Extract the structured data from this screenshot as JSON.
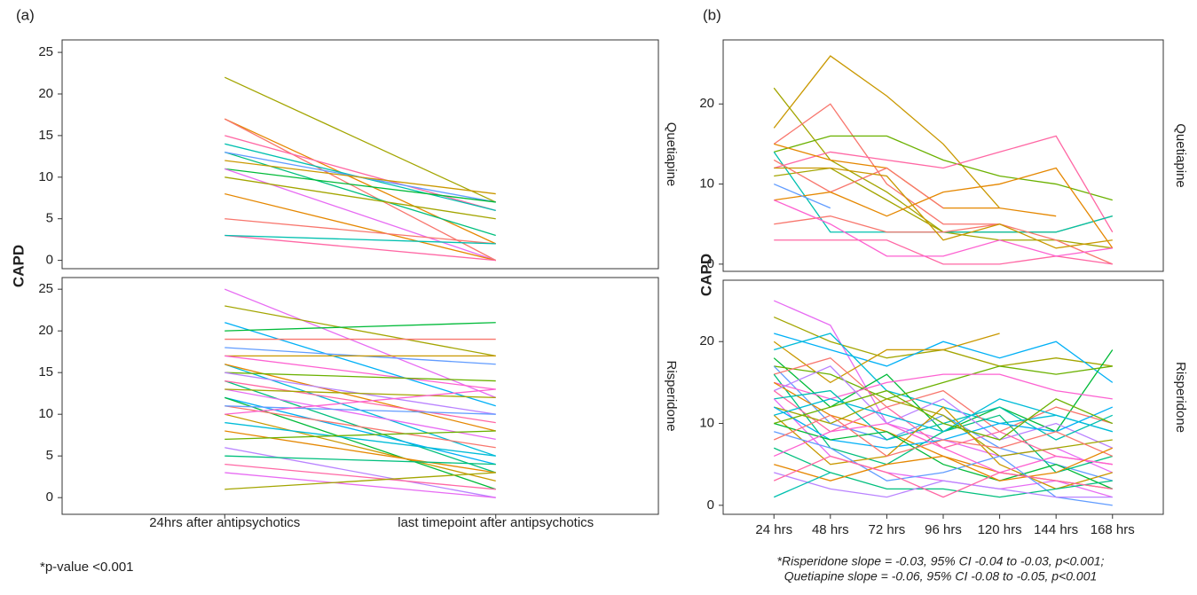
{
  "panels": [
    {
      "label": "(a)",
      "y_label": "CAPD",
      "note": "*p-value <0.001"
    },
    {
      "label": "(b)",
      "y_label": "CAPD",
      "note": [
        "*Risperidone slope = -0.03, 95% CI -0.04 to -0.03, p<0.001;",
        "Quetiapine slope = -0.06, 95% CI -0.08 to -0.05, p<0.001"
      ]
    }
  ],
  "chart_data": [
    {
      "type": "line",
      "facet_label": "Quetiapine",
      "categories": [
        null,
        null
      ],
      "ylim": [
        -1,
        26.5
      ],
      "yticks": [
        0,
        5,
        10,
        15,
        20,
        25
      ],
      "colors": [
        "#a3a500",
        "#e58700",
        "#f8766d",
        "#ff67a4",
        "#00c0af",
        "#00bf7d",
        "#619cff",
        "#c99800",
        "#00ba38",
        "#e76bf3"
      ],
      "series": [
        {
          "values": [
            22,
            7
          ]
        },
        {
          "values": [
            17,
            2
          ]
        },
        {
          "values": [
            17,
            0
          ]
        },
        {
          "values": [
            15,
            6
          ]
        },
        {
          "values": [
            14,
            6
          ]
        },
        {
          "values": [
            13,
            3
          ]
        },
        {
          "values": [
            13,
            7
          ]
        },
        {
          "values": [
            12,
            8
          ]
        },
        {
          "values": [
            11,
            7
          ]
        },
        {
          "values": [
            11,
            0
          ]
        },
        {
          "values": [
            10,
            5
          ]
        },
        {
          "values": [
            8,
            0
          ]
        },
        {
          "values": [
            5,
            2
          ]
        },
        {
          "values": [
            3,
            0
          ]
        },
        {
          "values": [
            3,
            2
          ]
        }
      ]
    },
    {
      "type": "line",
      "facet_label": "Risperidone",
      "categories": [
        "24hrs after antipsychotics",
        "last timepoint after antipsychotics"
      ],
      "ylim": [
        -2,
        26.4
      ],
      "yticks": [
        0,
        5,
        10,
        15,
        20,
        25
      ],
      "colors": [
        "#e76bf3",
        "#a3a500",
        "#00b0f6",
        "#00ba38",
        "#f8766d",
        "#619cff",
        "#c99800",
        "#fd61d1",
        "#00bcd8",
        "#e58700",
        "#6bb100",
        "#b983ff",
        "#00bf7d",
        "#ff67a4"
      ],
      "series": [
        {
          "values": [
            25,
            12
          ]
        },
        {
          "values": [
            23,
            17
          ]
        },
        {
          "values": [
            21,
            11
          ]
        },
        {
          "values": [
            20,
            21
          ]
        },
        {
          "values": [
            19,
            19
          ]
        },
        {
          "values": [
            18,
            16
          ]
        },
        {
          "values": [
            17,
            17
          ]
        },
        {
          "values": [
            17,
            13
          ]
        },
        {
          "values": [
            16,
            5
          ]
        },
        {
          "values": [
            16,
            8
          ]
        },
        {
          "values": [
            15,
            14
          ]
        },
        {
          "values": [
            15,
            10
          ]
        },
        {
          "values": [
            14,
            3
          ]
        },
        {
          "values": [
            14,
            9
          ]
        },
        {
          "values": [
            13,
            7
          ]
        },
        {
          "values": [
            13,
            12
          ]
        },
        {
          "values": [
            12,
            4
          ]
        },
        {
          "values": [
            12,
            1
          ]
        },
        {
          "values": [
            11,
            6
          ]
        },
        {
          "values": [
            11,
            10
          ]
        },
        {
          "values": [
            10,
            2
          ]
        },
        {
          "values": [
            10,
            13
          ]
        },
        {
          "values": [
            9,
            5
          ]
        },
        {
          "values": [
            8,
            3
          ]
        },
        {
          "values": [
            7,
            8
          ]
        },
        {
          "values": [
            6,
            0
          ]
        },
        {
          "values": [
            5,
            4
          ]
        },
        {
          "values": [
            4,
            1
          ]
        },
        {
          "values": [
            3,
            0
          ]
        },
        {
          "values": [
            1,
            3
          ]
        }
      ]
    },
    {
      "type": "line",
      "facet_label": "Quetiapine",
      "categories": [
        null,
        null,
        null,
        null,
        null,
        null,
        null
      ],
      "ylim": [
        -0.9,
        28
      ],
      "yticks": [
        0,
        10,
        20
      ],
      "colors": [
        "#c99800",
        "#a3a500",
        "#f8766d",
        "#6bb100",
        "#ff67a4",
        "#e58700",
        "#a3a500",
        "#00c0af",
        "#f8766d",
        "#e58700",
        "#f8766d",
        "#ff67a4",
        "#619cff",
        "#c99800",
        "#fd61d1"
      ],
      "series": [
        {
          "values": [
            17,
            26,
            21,
            15,
            7,
            null,
            null
          ]
        },
        {
          "values": [
            22,
            13,
            9,
            4,
            4,
            4,
            6
          ]
        },
        {
          "values": [
            15,
            20,
            10,
            5,
            5,
            null,
            null
          ]
        },
        {
          "values": [
            14,
            16,
            16,
            13,
            11,
            10,
            8
          ]
        },
        {
          "values": [
            12,
            14,
            13,
            12,
            14,
            16,
            4
          ]
        },
        {
          "values": [
            15,
            13,
            12,
            7,
            7,
            6,
            null
          ]
        },
        {
          "values": [
            11,
            12,
            8,
            4,
            3,
            3,
            2
          ]
        },
        {
          "values": [
            14,
            4,
            4,
            4,
            4,
            4,
            6
          ]
        },
        {
          "values": [
            13,
            9,
            12,
            7,
            null,
            null,
            null
          ]
        },
        {
          "values": [
            8,
            9,
            6,
            9,
            10,
            12,
            2
          ]
        },
        {
          "values": [
            5,
            6,
            4,
            4,
            5,
            3,
            0
          ]
        },
        {
          "values": [
            3,
            3,
            3,
            0,
            0,
            1,
            0
          ]
        },
        {
          "values": [
            10,
            7,
            null,
            null,
            null,
            null,
            null
          ]
        },
        {
          "values": [
            12,
            12,
            11,
            3,
            5,
            2,
            3
          ]
        },
        {
          "values": [
            8,
            5,
            1,
            1,
            3,
            1,
            2
          ]
        }
      ]
    },
    {
      "type": "line",
      "facet_label": "Risperidone",
      "categories": [
        "24 hrs",
        "48 hrs",
        "72 hrs",
        "96 hrs",
        "120 hrs",
        "144 hrs",
        "168 hrs"
      ],
      "ylim": [
        -1.1,
        27.5
      ],
      "yticks": [
        0,
        10,
        20
      ],
      "colors": [
        "#e76bf3",
        "#a3a500",
        "#00b0f6",
        "#c99800",
        "#00bcd8",
        "#00ba38",
        "#6bb100",
        "#619cff",
        "#f8766d",
        "#00bf7d",
        "#fd61d1",
        "#e58700",
        "#b983ff",
        "#ff67a4",
        "#00c0af"
      ],
      "series": [
        {
          "values": [
            25,
            22,
            10,
            8,
            6,
            7,
            4
          ]
        },
        {
          "values": [
            23,
            20,
            18,
            19,
            17,
            18,
            17
          ]
        },
        {
          "values": [
            21,
            19,
            17,
            20,
            18,
            20,
            15
          ]
        },
        {
          "values": [
            20,
            15,
            19,
            19,
            21,
            null,
            null
          ]
        },
        {
          "values": [
            19,
            21,
            14,
            12,
            10,
            11,
            9
          ]
        },
        {
          "values": [
            18,
            12,
            16,
            9,
            12,
            9,
            19
          ]
        },
        {
          "values": [
            17,
            16,
            13,
            15,
            17,
            16,
            17
          ]
        },
        {
          "values": [
            17,
            10,
            8,
            11,
            7,
            5,
            3
          ]
        },
        {
          "values": [
            16,
            18,
            12,
            14,
            9,
            12,
            10
          ]
        },
        {
          "values": [
            16,
            7,
            5,
            9,
            11,
            4,
            6
          ]
        },
        {
          "values": [
            15,
            13,
            15,
            16,
            16,
            14,
            13
          ]
        },
        {
          "values": [
            15,
            11,
            9,
            6,
            4,
            3,
            2
          ]
        },
        {
          "values": [
            14,
            17,
            10,
            13,
            8,
            10,
            7
          ]
        },
        {
          "values": [
            14,
            9,
            12,
            7,
            9,
            6,
            5
          ]
        },
        {
          "values": [
            13,
            14,
            8,
            10,
            12,
            8,
            11
          ]
        },
        {
          "values": [
            13,
            6,
            4,
            3,
            2,
            3,
            1
          ]
        },
        {
          "values": [
            12,
            10,
            13,
            11,
            6,
            7,
            8
          ]
        },
        {
          "values": [
            12,
            8,
            7,
            8,
            10,
            9,
            12
          ]
        },
        {
          "values": [
            11,
            5,
            6,
            12,
            5,
            2,
            4
          ]
        },
        {
          "values": [
            11,
            13,
            11,
            9,
            13,
            11,
            9
          ]
        },
        {
          "values": [
            10,
            8,
            9,
            5,
            3,
            5,
            2
          ]
        },
        {
          "values": [
            10,
            12,
            14,
            10,
            8,
            13,
            10
          ]
        },
        {
          "values": [
            9,
            7,
            3,
            4,
            6,
            1,
            0
          ]
        },
        {
          "values": [
            8,
            11,
            6,
            8,
            7,
            9,
            6
          ]
        },
        {
          "values": [
            7,
            4,
            2,
            2,
            1,
            2,
            3
          ]
        },
        {
          "values": [
            6,
            9,
            10,
            7,
            4,
            6,
            5
          ]
        },
        {
          "values": [
            5,
            3,
            5,
            6,
            3,
            4,
            7
          ]
        },
        {
          "values": [
            4,
            2,
            1,
            3,
            2,
            1,
            1
          ]
        },
        {
          "values": [
            3,
            6,
            4,
            1,
            4,
            3,
            2
          ]
        },
        {
          "values": [
            1,
            4,
            null,
            null,
            null,
            null,
            null
          ]
        }
      ]
    }
  ]
}
